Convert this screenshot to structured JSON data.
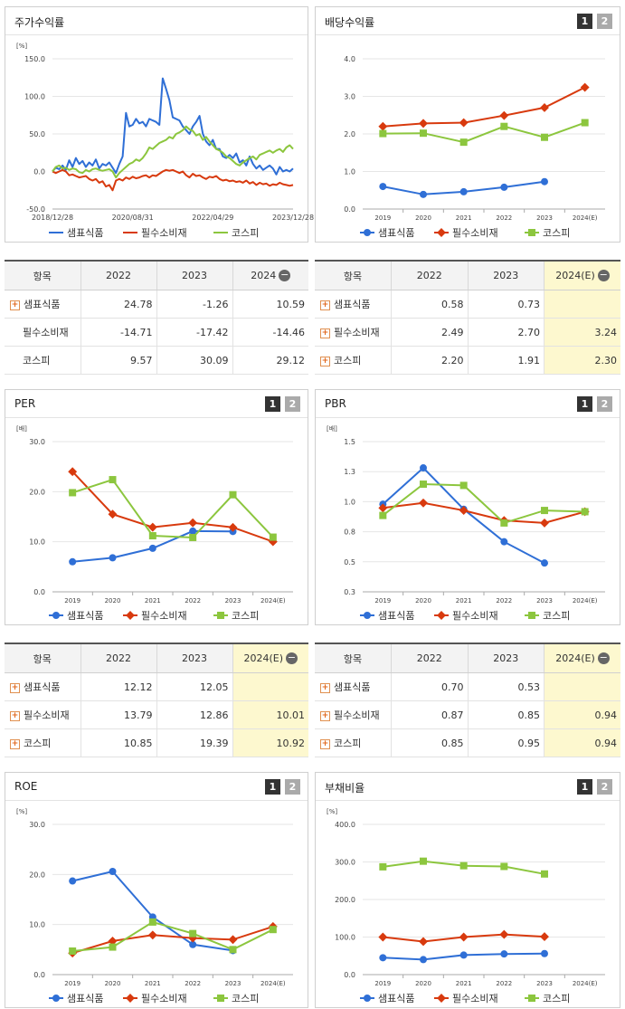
{
  "colors": {
    "series1": "#2f6fd6",
    "series2": "#d83a0e",
    "series3": "#8cc63e"
  },
  "legend": [
    "샘표식품",
    "필수소비재",
    "코스피"
  ],
  "panels": {
    "stock": {
      "title": "주가수익률",
      "unit": "[%]"
    },
    "dividend": {
      "title": "배당수익률",
      "unit": "",
      "btn1": "1",
      "btn2": "2"
    },
    "per": {
      "title": "PER",
      "unit": "[배]",
      "btn1": "1",
      "btn2": "2"
    },
    "pbr": {
      "title": "PBR",
      "unit": "[배]",
      "btn1": "1",
      "btn2": "2"
    },
    "roe": {
      "title": "ROE",
      "unit": "[%]",
      "btn1": "1",
      "btn2": "2"
    },
    "debt": {
      "title": "부채비율",
      "unit": "[%]",
      "btn1": "1",
      "btn2": "2"
    }
  },
  "tables": {
    "stock": {
      "headers": [
        "항목",
        "2022",
        "2023",
        "2024"
      ],
      "rows": [
        {
          "label": "샘표식품",
          "plus": true,
          "values": [
            "24.78",
            "-1.26",
            "10.59"
          ]
        },
        {
          "label": "필수소비재",
          "plus": false,
          "values": [
            "-14.71",
            "-17.42",
            "-14.46"
          ]
        },
        {
          "label": "코스피",
          "plus": false,
          "values": [
            "9.57",
            "30.09",
            "29.12"
          ]
        }
      ]
    },
    "dividend": {
      "headers": [
        "항목",
        "2022",
        "2023",
        "2024(E)"
      ],
      "rows": [
        {
          "label": "샘표식품",
          "plus": true,
          "values": [
            "0.58",
            "0.73",
            ""
          ]
        },
        {
          "label": "필수소비재",
          "plus": true,
          "values": [
            "2.49",
            "2.70",
            "3.24"
          ]
        },
        {
          "label": "코스피",
          "plus": true,
          "values": [
            "2.20",
            "1.91",
            "2.30"
          ]
        }
      ]
    },
    "per": {
      "headers": [
        "항목",
        "2022",
        "2023",
        "2024(E)"
      ],
      "rows": [
        {
          "label": "샘표식품",
          "plus": true,
          "values": [
            "12.12",
            "12.05",
            ""
          ]
        },
        {
          "label": "필수소비재",
          "plus": true,
          "values": [
            "13.79",
            "12.86",
            "10.01"
          ]
        },
        {
          "label": "코스피",
          "plus": true,
          "values": [
            "10.85",
            "19.39",
            "10.92"
          ]
        }
      ]
    },
    "pbr": {
      "headers": [
        "항목",
        "2022",
        "2023",
        "2024(E)"
      ],
      "rows": [
        {
          "label": "샘표식품",
          "plus": true,
          "values": [
            "0.70",
            "0.53",
            ""
          ]
        },
        {
          "label": "필수소비재",
          "plus": true,
          "values": [
            "0.87",
            "0.85",
            "0.94"
          ]
        },
        {
          "label": "코스피",
          "plus": true,
          "values": [
            "0.85",
            "0.95",
            "0.94"
          ]
        }
      ]
    }
  },
  "chart_data": [
    {
      "id": "stock",
      "type": "line",
      "title": "주가수익률",
      "ylabel": "[%]",
      "ylim": [
        -50,
        150
      ],
      "yticks": [
        "150.0",
        "100.0",
        "50.0",
        "0.0",
        "-50.0"
      ],
      "xticklabels": [
        "2018/12/28",
        "2020/08/31",
        "2022/04/29",
        "2023/12/28"
      ],
      "series": [
        {
          "name": "샘표식품",
          "values": [
            0,
            5,
            3,
            8,
            2,
            15,
            6,
            18,
            10,
            14,
            6,
            12,
            8,
            16,
            4,
            10,
            8,
            12,
            5,
            -2,
            10,
            20,
            78,
            60,
            62,
            70,
            64,
            66,
            60,
            70,
            68,
            66,
            62,
            124,
            110,
            95,
            72,
            70,
            68,
            60,
            55,
            50,
            60,
            66,
            74,
            50,
            40,
            35,
            42,
            30,
            30,
            20,
            18,
            22,
            18,
            24,
            12,
            15,
            8,
            20,
            10,
            4,
            8,
            2,
            5,
            8,
            4,
            -4,
            6,
            0,
            2,
            0,
            4
          ]
        },
        {
          "name": "필수소비재",
          "values": [
            0,
            -2,
            0,
            2,
            0,
            -5,
            -4,
            -6,
            -8,
            -7,
            -6,
            -10,
            -12,
            -10,
            -15,
            -13,
            -20,
            -18,
            -25,
            -12,
            -10,
            -12,
            -8,
            -10,
            -7,
            -9,
            -8,
            -6,
            -5,
            -8,
            -5,
            -6,
            -3,
            0,
            2,
            1,
            2,
            0,
            -2,
            0,
            -5,
            -8,
            -3,
            -6,
            -5,
            -8,
            -10,
            -7,
            -8,
            -6,
            -10,
            -12,
            -11,
            -13,
            -12,
            -14,
            -13,
            -15,
            -12,
            -16,
            -14,
            -18,
            -15,
            -17,
            -16,
            -19,
            -17,
            -18,
            -15,
            -17,
            -18,
            -19,
            -18
          ]
        },
        {
          "name": "코스피",
          "values": [
            0,
            6,
            8,
            4,
            5,
            2,
            4,
            3,
            -1,
            -2,
            2,
            0,
            3,
            4,
            2,
            1,
            2,
            3,
            0,
            -8,
            -2,
            2,
            6,
            10,
            12,
            16,
            14,
            18,
            24,
            32,
            30,
            34,
            38,
            40,
            42,
            46,
            44,
            50,
            52,
            55,
            60,
            56,
            54,
            48,
            50,
            42,
            46,
            40,
            35,
            30,
            28,
            25,
            20,
            18,
            14,
            10,
            8,
            12,
            15,
            18,
            20,
            16,
            22,
            24,
            26,
            28,
            25,
            28,
            30,
            26,
            32,
            35,
            30
          ]
        }
      ]
    },
    {
      "id": "dividend",
      "type": "line",
      "title": "배당수익률",
      "ylim": [
        0,
        4
      ],
      "categories": [
        "2019",
        "2020",
        "2021",
        "2022",
        "2023",
        "2024(E)"
      ],
      "yticks": [
        "4.0",
        "3.0",
        "2.0",
        "1.0",
        "0.0"
      ],
      "series": [
        {
          "name": "샘표식품",
          "values": [
            0.6,
            0.39,
            0.46,
            0.58,
            0.73,
            null
          ]
        },
        {
          "name": "필수소비재",
          "values": [
            2.2,
            2.28,
            2.3,
            2.49,
            2.7,
            3.24
          ]
        },
        {
          "name": "코스피",
          "values": [
            2.01,
            2.02,
            1.78,
            2.2,
            1.91,
            2.3
          ]
        }
      ]
    },
    {
      "id": "per",
      "type": "line",
      "title": "PER",
      "ylabel": "[배]",
      "ylim": [
        0,
        30
      ],
      "categories": [
        "2019",
        "2020",
        "2021",
        "2022",
        "2023",
        "2024(E)"
      ],
      "yticks": [
        "30.0",
        "20.0",
        "10.0",
        "0.0"
      ],
      "series": [
        {
          "name": "샘표식품",
          "values": [
            6.0,
            6.8,
            8.7,
            12.12,
            12.05,
            null
          ]
        },
        {
          "name": "필수소비재",
          "values": [
            24.0,
            15.5,
            12.9,
            13.79,
            12.86,
            10.01
          ]
        },
        {
          "name": "코스피",
          "values": [
            19.8,
            22.4,
            11.2,
            10.85,
            19.39,
            10.92
          ]
        }
      ]
    },
    {
      "id": "pbr",
      "type": "line",
      "title": "PBR",
      "ylabel": "[배]",
      "ylim": [
        0.3,
        1.5
      ],
      "categories": [
        "2019",
        "2020",
        "2021",
        "2022",
        "2023",
        "2024(E)"
      ],
      "yticks": [
        "1.5",
        "1.3",
        "1.0",
        "0.8",
        "0.5",
        "0.3"
      ],
      "series": [
        {
          "name": "샘표식품",
          "values": [
            1.0,
            1.29,
            0.96,
            0.7,
            0.53,
            null
          ]
        },
        {
          "name": "필수소비재",
          "values": [
            0.97,
            1.01,
            0.95,
            0.87,
            0.85,
            0.94
          ]
        },
        {
          "name": "코스피",
          "values": [
            0.91,
            1.16,
            1.15,
            0.85,
            0.95,
            0.94
          ]
        }
      ]
    },
    {
      "id": "roe",
      "type": "line",
      "title": "ROE",
      "ylabel": "[%]",
      "ylim": [
        0,
        30
      ],
      "categories": [
        "2019",
        "2020",
        "2021",
        "2022",
        "2023",
        "2024(E)"
      ],
      "yticks": [
        "30.0",
        "20.0",
        "10.0",
        "0.0"
      ],
      "series": [
        {
          "name": "샘표식품",
          "values": [
            18.7,
            20.6,
            11.5,
            6.0,
            4.8,
            null
          ]
        },
        {
          "name": "필수소비재",
          "values": [
            4.3,
            6.7,
            7.9,
            7.3,
            7.0,
            9.6
          ]
        },
        {
          "name": "코스피",
          "values": [
            4.7,
            5.5,
            10.5,
            8.2,
            5.0,
            9.0
          ]
        }
      ]
    },
    {
      "id": "debt",
      "type": "line",
      "title": "부채비율",
      "ylabel": "[%]",
      "ylim": [
        0,
        400
      ],
      "categories": [
        "2019",
        "2020",
        "2021",
        "2022",
        "2023",
        "2024(E)"
      ],
      "yticks": [
        "400.0",
        "300.0",
        "200.0",
        "100.0",
        "0.0"
      ],
      "series": [
        {
          "name": "샘표식품",
          "values": [
            45,
            40,
            52,
            55,
            56,
            null
          ]
        },
        {
          "name": "필수소비재",
          "values": [
            100,
            88,
            100,
            107,
            101,
            null
          ]
        },
        {
          "name": "코스피",
          "values": [
            287,
            302,
            290,
            288,
            268,
            null
          ]
        }
      ]
    },
    {
      "id": "dummy_unused_placeholder_none",
      "type": "table"
    }
  ]
}
